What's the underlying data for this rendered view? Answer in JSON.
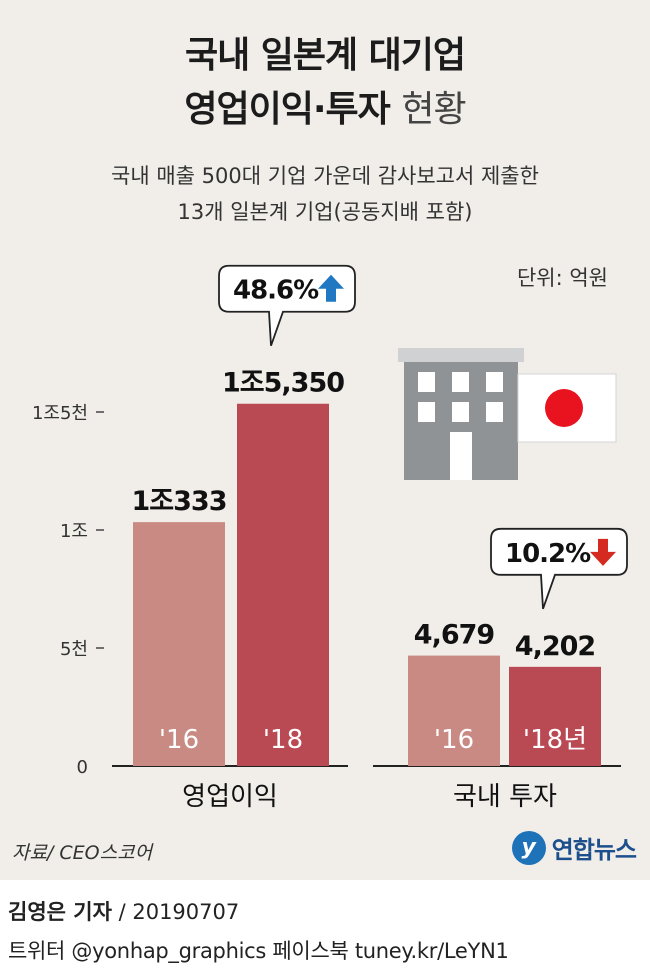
{
  "header": {
    "title_line1": "국내 일본계 대기업",
    "title_line2_bold": "영업이익·투자",
    "title_line2_light": "현황",
    "subtitle_line1": "국내 매출 500대 기업 가운데 감사보고서 제출한",
    "subtitle_line2": "13개 일본계 기업(공동지배 포함)",
    "unit": "단위: 억원"
  },
  "chart_data": {
    "type": "bar",
    "unit": "억원",
    "ylim": [
      0,
      20000
    ],
    "yticks": [
      {
        "value": 0,
        "label": "0"
      },
      {
        "value": 5000,
        "label": "5천"
      },
      {
        "value": 10000,
        "label": "1조"
      },
      {
        "value": 15000,
        "label": "1조5천"
      }
    ],
    "groups": [
      {
        "name": "영업이익",
        "bars": [
          {
            "year_label": "'16",
            "value": 10333,
            "value_label": "1조333"
          },
          {
            "year_label": "'18",
            "value": 15350,
            "value_label": "1조5,350"
          }
        ],
        "change": {
          "label": "48.6%",
          "direction": "up"
        }
      },
      {
        "name": "국내 투자",
        "bars": [
          {
            "year_label": "'16",
            "value": 4679,
            "value_label": "4,679"
          },
          {
            "year_label": "'18년",
            "value": 4202,
            "value_label": "4,202"
          }
        ],
        "change": {
          "label": "10.2%",
          "direction": "down"
        }
      }
    ],
    "colors": {
      "bar_2016": "#c98a84",
      "bar_2018": "#b94a54",
      "arrow_up": "#1f78c1",
      "arrow_down": "#d42a20",
      "flag_circle": "#e8131e",
      "building": "#8f9396"
    }
  },
  "footer": {
    "source": "자료/ CEO스코어",
    "logo_text": "연합뉴스",
    "logo_mark": "y",
    "credit_name": "김영은 기자",
    "credit_date": " / 20190707",
    "links": "트위터 @yonhap_graphics  페이스북 tuney.kr/LeYN1"
  }
}
